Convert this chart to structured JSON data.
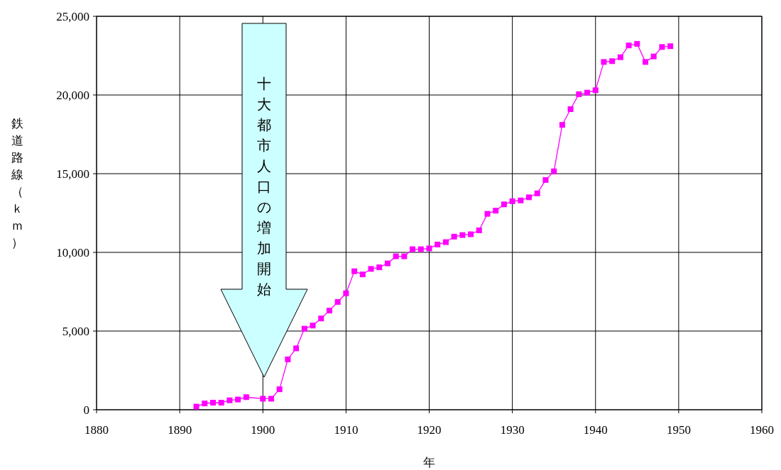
{
  "chart_data": {
    "type": "line",
    "xlabel": "年",
    "ylabel": "鉄道路線（ｋｍ）",
    "x": [
      1892,
      1893,
      1894,
      1895,
      1896,
      1897,
      1898,
      1900,
      1901,
      1902,
      1903,
      1904,
      1905,
      1906,
      1907,
      1908,
      1909,
      1910,
      1911,
      1912,
      1913,
      1914,
      1915,
      1916,
      1917,
      1918,
      1919,
      1920,
      1921,
      1922,
      1923,
      1924,
      1925,
      1926,
      1927,
      1928,
      1929,
      1930,
      1931,
      1932,
      1933,
      1934,
      1935,
      1936,
      1937,
      1938,
      1939,
      1940,
      1941,
      1942,
      1943,
      1944,
      1945,
      1946,
      1947,
      1948,
      1949
    ],
    "series": [
      {
        "color": "#ff00ff",
        "values": [
          200,
          400,
          450,
          450,
          600,
          650,
          800,
          700,
          700,
          1300,
          3200,
          3900,
          5150,
          5350,
          5800,
          6300,
          6850,
          7400,
          8800,
          8600,
          8950,
          9050,
          9300,
          9750,
          9750,
          10200,
          10200,
          10250,
          10500,
          10650,
          11000,
          11100,
          11150,
          11400,
          12450,
          12650,
          13050,
          13250,
          13300,
          13500,
          13750,
          14600,
          15150,
          18100,
          19100,
          20050,
          20150,
          20300,
          22100,
          22150,
          22400,
          23150,
          23250,
          22100,
          22450,
          23050,
          23100
        ]
      }
    ],
    "xlim": [
      1880,
      1960
    ],
    "xticks": [
      1880,
      1890,
      1900,
      1910,
      1920,
      1930,
      1940,
      1950,
      1960
    ],
    "ylim": [
      0,
      25000
    ],
    "yticks": [
      0,
      {
        "value": 5000,
        "label": "5,000"
      },
      {
        "value": 10000,
        "label": "10,000"
      },
      {
        "value": 15000,
        "label": "15,000"
      },
      {
        "value": 20000,
        "label": "20,000"
      },
      {
        "value": 25000,
        "label": "25,000"
      }
    ],
    "grid": true,
    "marker": "square",
    "line_style": "solid",
    "annotations": [
      "十大都市人口の増加開始"
    ]
  }
}
